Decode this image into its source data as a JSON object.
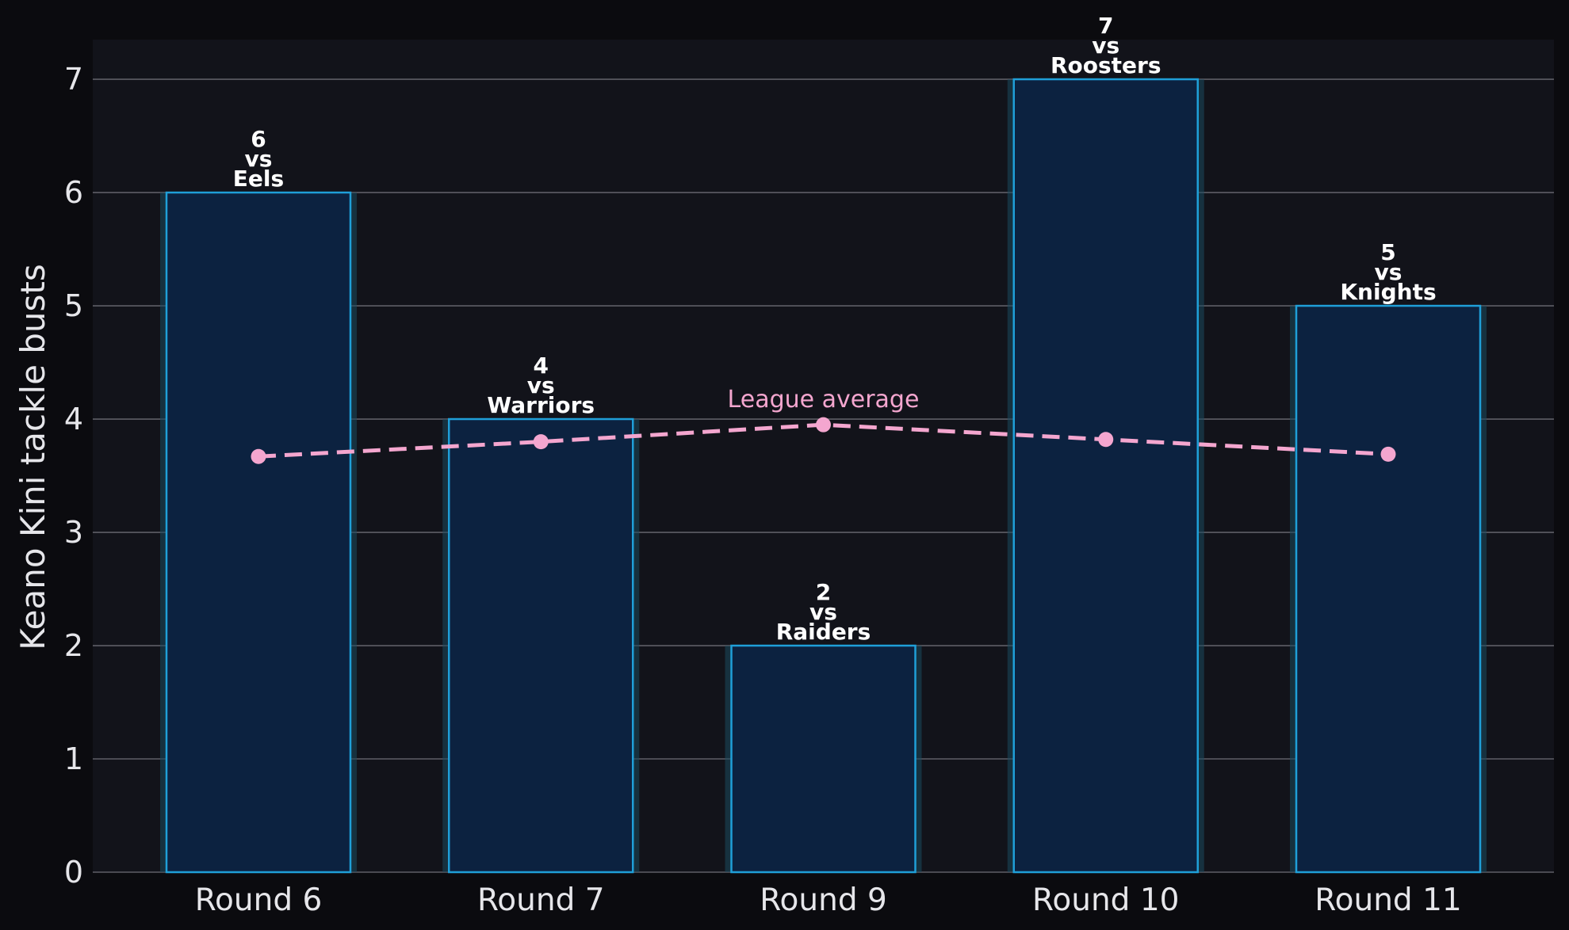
{
  "chart_data": {
    "type": "bar",
    "title": "",
    "xlabel": "",
    "ylabel": "Keano Kini tackle busts",
    "ylim": [
      0,
      7.35
    ],
    "yticks": [
      0,
      1,
      2,
      3,
      4,
      5,
      6,
      7
    ],
    "grid": true,
    "categories": [
      "Round 6",
      "Round 7",
      "Round 9",
      "Round 10",
      "Round 11"
    ],
    "series": [
      {
        "values": [
          6,
          4,
          2,
          7,
          5
        ]
      },
      {
        "name": "League average",
        "type": "line",
        "style": "dashed",
        "values": [
          3.67,
          3.8,
          3.95,
          3.82,
          3.69
        ]
      }
    ],
    "bar_labels": [
      [
        "6",
        "vs",
        "Eels"
      ],
      [
        "4",
        "vs",
        "Warriors"
      ],
      [
        "2",
        "vs",
        "Raiders"
      ],
      [
        "7",
        "vs",
        "Roosters"
      ],
      [
        "5",
        "vs",
        "Knights"
      ]
    ],
    "annotation": {
      "text": "League average",
      "at_category": "Round 9"
    },
    "colors": {
      "background": "#0b0b0f",
      "plot_background": "#12131a",
      "bar_fill": "#0c2240",
      "bar_edge": "#1f9fd8",
      "bar_glow": "#1a4a5e",
      "average_line": "#f4a6cf",
      "grid": "#5e5e66",
      "text": "#e6e6ea",
      "label_text": "#ffffff"
    }
  }
}
